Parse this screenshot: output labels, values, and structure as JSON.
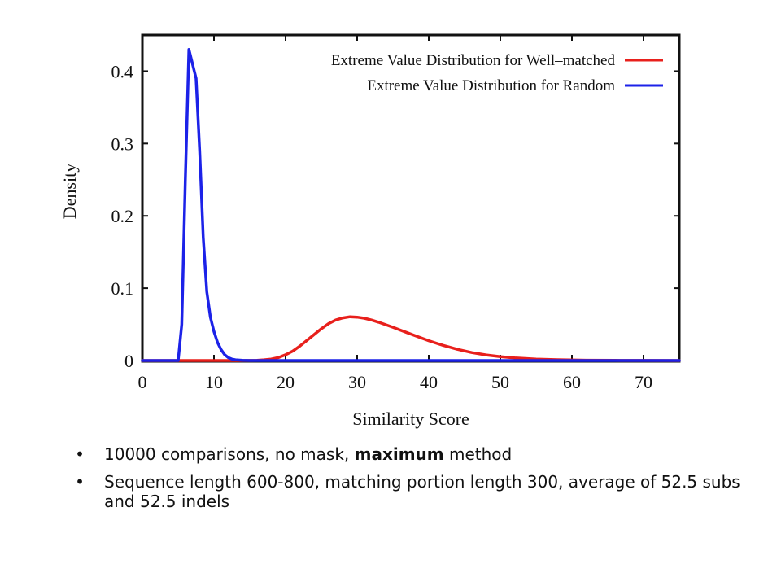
{
  "chart_data": {
    "type": "line",
    "xlabel": "Similarity Score",
    "ylabel": "Density",
    "xlim": [
      0,
      75
    ],
    "ylim": [
      0,
      0.45
    ],
    "xticks": [
      0,
      10,
      20,
      30,
      40,
      50,
      60,
      70
    ],
    "yticks": [
      0,
      0.1,
      0.2,
      0.3,
      0.4
    ],
    "ytick_labels": [
      "0",
      "0.1",
      "0.2",
      "0.3",
      "0.4"
    ],
    "grid": false,
    "legend_position": "top-right",
    "series": [
      {
        "name": "Extreme Value Distribution for Well–matched",
        "color": "#e8201c",
        "x": [
          0,
          14,
          16,
          17,
          18,
          19,
          20,
          21,
          22,
          23,
          24,
          25,
          26,
          27,
          28,
          29,
          30,
          31,
          32,
          33,
          34,
          35,
          36,
          37,
          38,
          39,
          40,
          41,
          42,
          44,
          46,
          48,
          50,
          52,
          55,
          58,
          62,
          66,
          70,
          75
        ],
        "y": [
          0,
          0,
          0.0003,
          0.001,
          0.002,
          0.004,
          0.008,
          0.013,
          0.02,
          0.028,
          0.036,
          0.044,
          0.051,
          0.056,
          0.059,
          0.0605,
          0.06,
          0.0585,
          0.056,
          0.053,
          0.0495,
          0.046,
          0.0422,
          0.0385,
          0.0348,
          0.031,
          0.0275,
          0.0242,
          0.021,
          0.0155,
          0.011,
          0.0078,
          0.0054,
          0.0037,
          0.002,
          0.0011,
          0.0005,
          0.0002,
          0.0001,
          0
        ]
      },
      {
        "name": "Extreme Value Distribution for Random",
        "color": "#1c22e8",
        "x": [
          0,
          5,
          5.5,
          6,
          6.5,
          7,
          7.5,
          8,
          8.5,
          9,
          9.5,
          10,
          10.5,
          11,
          11.5,
          12,
          12.5,
          13,
          14,
          15,
          75
        ],
        "y": [
          0,
          0,
          0.05,
          0.25,
          0.43,
          0.41,
          0.39,
          0.29,
          0.17,
          0.095,
          0.06,
          0.04,
          0.025,
          0.015,
          0.008,
          0.004,
          0.002,
          0.001,
          0.0003,
          0,
          0
        ]
      }
    ]
  },
  "bullets": {
    "item1_pre": "10000 comparisons, no mask, ",
    "item1_bold": "maximum",
    "item1_post": " method",
    "item2": "Sequence length 600-800, matching portion length 300, average of 52.5 subs and 52.5 indels"
  }
}
